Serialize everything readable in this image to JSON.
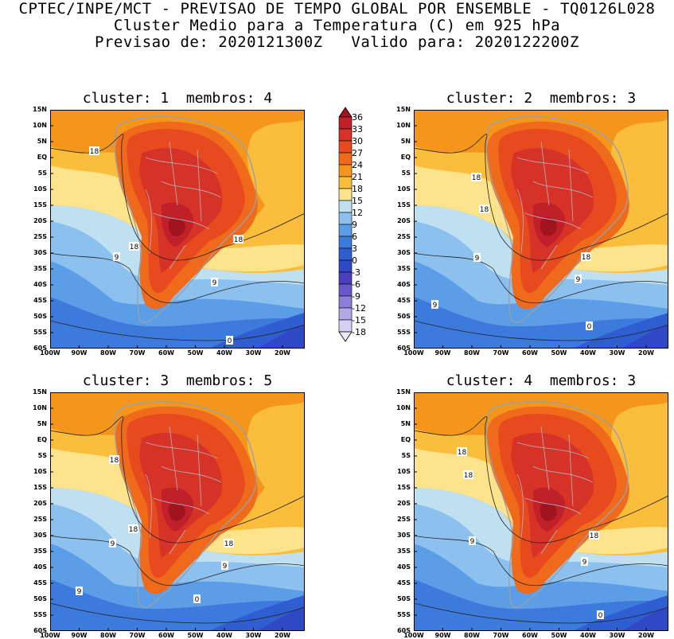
{
  "header": {
    "line1": "CPTEC/INPE/MCT - PREVISAO DE TEMPO GLOBAL POR ENSEMBLE - TQ0126L028",
    "line2": "Cluster Medio para a Temperatura (C) em 925 hPa",
    "line3": "Previsao de: 2020121300Z   Valido para: 2020122200Z"
  },
  "panels": [
    {
      "title": "cluster: 1  membros: 4",
      "contours": [
        "18",
        "18",
        "18",
        "9",
        "9",
        "0"
      ]
    },
    {
      "title": "cluster: 2  membros: 3",
      "contours": [
        "18",
        "18",
        "18",
        "9",
        "9",
        "9",
        "0"
      ]
    },
    {
      "title": "cluster: 3  membros: 5",
      "contours": [
        "18",
        "18",
        "18",
        "9",
        "9",
        "9",
        "0"
      ]
    },
    {
      "title": "cluster: 4  membros: 3",
      "contours": [
        "18",
        "18",
        "18",
        "9",
        "9",
        "0"
      ]
    }
  ],
  "lat_labels": [
    "15N",
    "10N",
    "5N",
    "EQ",
    "5S",
    "10S",
    "15S",
    "20S",
    "25S",
    "30S",
    "35S",
    "40S",
    "45S",
    "50S",
    "55S",
    "60S"
  ],
  "lon_labels": [
    "100W",
    "90W",
    "80W",
    "70W",
    "60W",
    "50W",
    "40W",
    "30W",
    "20W"
  ],
  "colorbar": {
    "labels": [
      "36",
      "33",
      "30",
      "27",
      "24",
      "21",
      "18",
      "15",
      "12",
      "9",
      "6",
      "3",
      "0",
      "-3",
      "-6",
      "-9",
      "-12",
      "-15",
      "-18"
    ],
    "colors": [
      "#a0141e",
      "#c0202a",
      "#d73227",
      "#e64a1e",
      "#f06a1c",
      "#f5961c",
      "#fabe3c",
      "#fde38c",
      "#bfe0f0",
      "#8cc0ee",
      "#5b9de6",
      "#3c7bdc",
      "#2e5ed0",
      "#2f48c4",
      "#4b3fbe",
      "#6a57c9",
      "#8f7ed8",
      "#b3a8e6",
      "#d7d0f3",
      "#ece8fa"
    ]
  }
}
